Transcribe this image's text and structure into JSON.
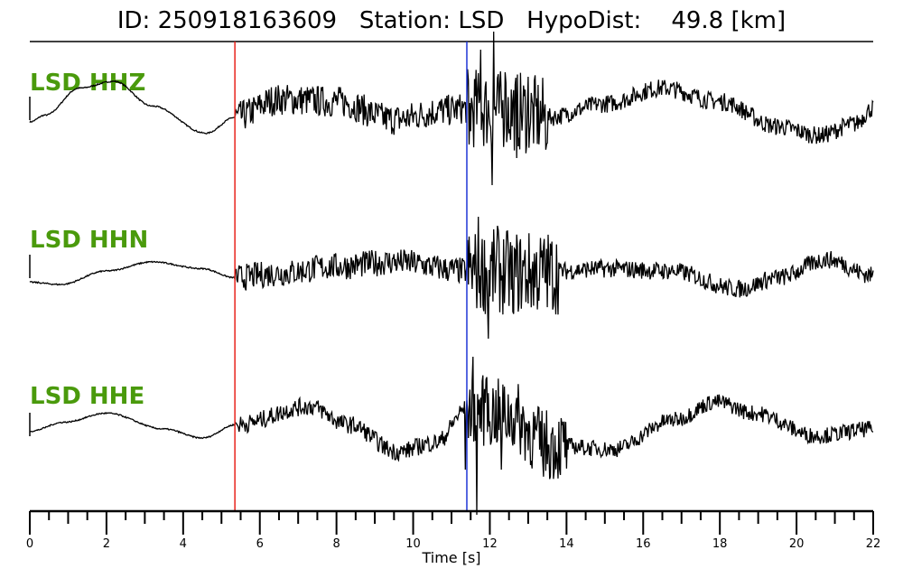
{
  "title": {
    "id_label": "ID:",
    "id_value": "250918163609",
    "station_label": "Station:",
    "station_value": "LSD",
    "hypodist_label": "HypoDist:",
    "hypodist_value": "49.8",
    "hypodist_unit": "[km]"
  },
  "chart_data": {
    "type": "line",
    "xlabel": "Time [s]",
    "xlim": [
      0,
      22
    ],
    "x_ticks": [
      0,
      2,
      4,
      6,
      8,
      10,
      12,
      14,
      16,
      18,
      20,
      22
    ],
    "minor_tick_step": 0.5,
    "picks": [
      {
        "phase": "P",
        "time": 5.35,
        "color": "#e8231c"
      },
      {
        "phase": "S",
        "time": 11.4,
        "color": "#1f35d6"
      }
    ],
    "traces": [
      {
        "name": "LSD HHZ",
        "baseline": [
          [
            0,
            -0.2
          ],
          [
            0.4,
            -0.05
          ],
          [
            1.3,
            0.55
          ],
          [
            2.2,
            0.7
          ],
          [
            3.2,
            0.15
          ],
          [
            4.6,
            -0.45
          ],
          [
            5.35,
            -0.1
          ],
          [
            6.5,
            0.3
          ],
          [
            8.0,
            0.25
          ],
          [
            9.5,
            -0.15
          ],
          [
            10.8,
            0.05
          ],
          [
            11.4,
            0.1
          ],
          [
            12.5,
            0.05
          ],
          [
            13.5,
            -0.1
          ],
          [
            15.0,
            0.2
          ],
          [
            16.5,
            0.55
          ],
          [
            18.0,
            0.25
          ],
          [
            19.5,
            -0.3
          ],
          [
            20.6,
            -0.5
          ],
          [
            21.5,
            -0.25
          ],
          [
            22,
            0.1
          ]
        ],
        "segments": [
          {
            "start": 5.35,
            "end": 11.4,
            "amp": 0.35
          },
          {
            "start": 11.4,
            "end": 13.5,
            "amp": 0.9
          },
          {
            "start": 13.5,
            "end": 22,
            "amp": 0.2
          }
        ],
        "spikes": [
          [
            11.45,
            -0.7
          ],
          [
            11.75,
            1.4
          ],
          [
            12.05,
            -1.6
          ],
          [
            12.1,
            1.8
          ],
          [
            12.4,
            0.9
          ],
          [
            12.7,
            -1.0
          ],
          [
            13.0,
            0.8
          ]
        ]
      },
      {
        "name": "LSD HHN",
        "baseline": [
          [
            0,
            -0.25
          ],
          [
            0.8,
            -0.3
          ],
          [
            2.0,
            0.0
          ],
          [
            3.2,
            0.2
          ],
          [
            4.5,
            0.05
          ],
          [
            5.35,
            -0.15
          ],
          [
            6.5,
            -0.05
          ],
          [
            8.0,
            0.1
          ],
          [
            9.5,
            0.2
          ],
          [
            11.4,
            0.0
          ],
          [
            13.0,
            -0.05
          ],
          [
            15.0,
            0.05
          ],
          [
            16.7,
            0.0
          ],
          [
            18.5,
            -0.4
          ],
          [
            19.5,
            -0.15
          ],
          [
            20.8,
            0.25
          ],
          [
            22,
            -0.1
          ]
        ],
        "segments": [
          {
            "start": 5.35,
            "end": 11.4,
            "amp": 0.3
          },
          {
            "start": 11.4,
            "end": 13.8,
            "amp": 0.95
          },
          {
            "start": 13.8,
            "end": 22,
            "amp": 0.2
          }
        ],
        "spikes": [
          [
            11.7,
            1.2
          ],
          [
            11.95,
            -1.5
          ],
          [
            12.2,
            1.0
          ],
          [
            12.6,
            -0.9
          ]
        ]
      },
      {
        "name": "LSD HHE",
        "baseline": [
          [
            0,
            -0.05
          ],
          [
            0.9,
            0.15
          ],
          [
            2.0,
            0.35
          ],
          [
            3.5,
            0.0
          ],
          [
            4.5,
            -0.2
          ],
          [
            5.4,
            0.1
          ],
          [
            7.3,
            0.5
          ],
          [
            8.3,
            0.1
          ],
          [
            9.6,
            -0.5
          ],
          [
            10.6,
            -0.3
          ],
          [
            11.4,
            0.45
          ],
          [
            12.5,
            0.3
          ],
          [
            13.5,
            -0.35
          ],
          [
            15.2,
            -0.45
          ],
          [
            16.8,
            0.2
          ],
          [
            17.9,
            0.6
          ],
          [
            18.9,
            0.35
          ],
          [
            20.5,
            -0.15
          ],
          [
            22,
            0.0
          ]
        ],
        "segments": [
          {
            "start": 5.35,
            "end": 11.4,
            "amp": 0.2
          },
          {
            "start": 11.4,
            "end": 14.0,
            "amp": 0.8
          },
          {
            "start": 14.0,
            "end": 22,
            "amp": 0.18
          }
        ],
        "spikes": [
          [
            11.35,
            -0.9
          ],
          [
            11.55,
            1.6
          ],
          [
            11.65,
            -1.9
          ],
          [
            11.9,
            1.1
          ],
          [
            12.3,
            -0.9
          ]
        ]
      }
    ]
  }
}
